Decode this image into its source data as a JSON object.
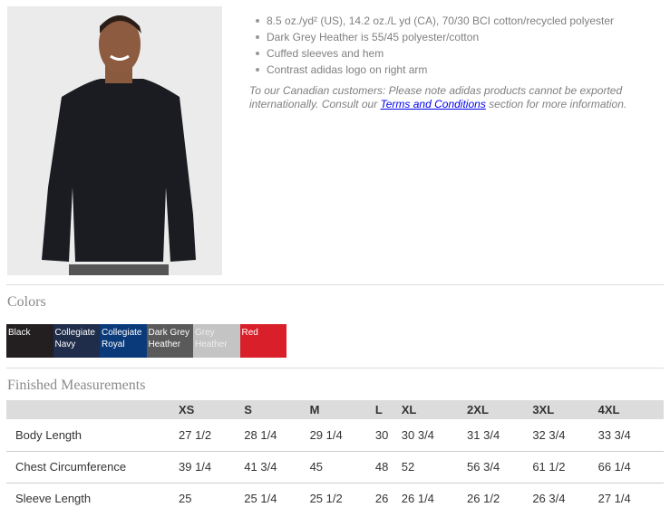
{
  "product": {
    "features": [
      "8.5 oz./yd² (US), 14.2 oz./L yd (CA), 70/30 BCI cotton/recycled polyester",
      "Dark Grey Heather is 55/45 polyester/cotton",
      "Cuffed sleeves and hem",
      "Contrast adidas logo on right arm"
    ],
    "note_before": "To our Canadian customers: Please note adidas products cannot be exported internationally. Consult our ",
    "note_link": "Terms and Conditions",
    "note_after": " section for more information."
  },
  "colors": {
    "title": "Colors",
    "swatches": [
      {
        "label": "Black",
        "color": "#231f20"
      },
      {
        "label": "Collegiate\nNavy",
        "color": "#1f2d4a"
      },
      {
        "label": "Collegiate\nRoyal",
        "color": "#0b3a7a"
      },
      {
        "label": "Dark Grey\nHeather",
        "color": "#5a5a5a"
      },
      {
        "label": "Grey\nHeather",
        "color": "#c4c4c4"
      },
      {
        "label": "Red",
        "color": "#d91f2a"
      }
    ]
  },
  "measurements": {
    "title": "Finished Measurements",
    "sizes": [
      "XS",
      "S",
      "M",
      "L",
      "XL",
      "2XL",
      "3XL",
      "4XL"
    ],
    "rows": [
      {
        "label": "Body Length",
        "values": [
          "27 1/2",
          "28 1/4",
          "29 1/4",
          "30",
          "30 3/4",
          "31 3/4",
          "32 3/4",
          "33 3/4"
        ]
      },
      {
        "label": "Chest Circumference",
        "values": [
          "39 1/4",
          "41 3/4",
          "45",
          "48",
          "52",
          "56 3/4",
          "61 1/2",
          "66 1/4"
        ]
      },
      {
        "label": "Sleeve Length",
        "values": [
          "25",
          "25 1/4",
          "25 1/2",
          "26",
          "26 1/4",
          "26 1/2",
          "26 3/4",
          "27 1/4"
        ]
      }
    ]
  }
}
